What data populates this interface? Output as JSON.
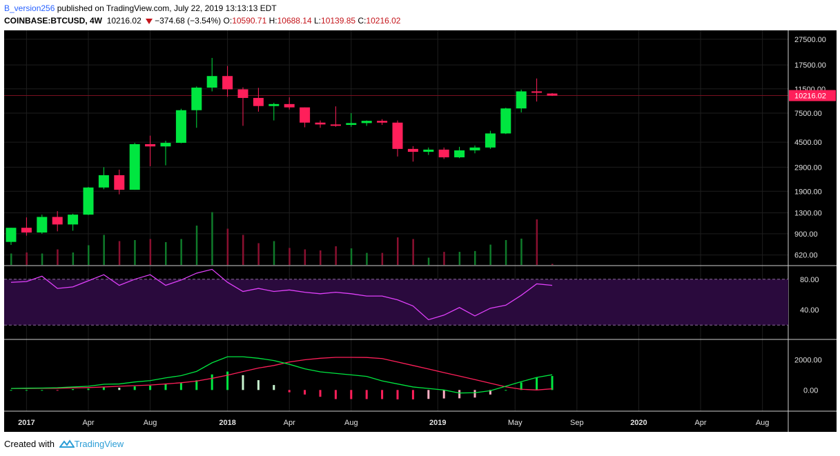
{
  "header": {
    "author": "B_version256",
    "published_text": " published on TradingView.com, July 22, 2019 13:13:13 EDT",
    "symbol": "COINBASE:BTCUSD, 4W",
    "last": "10216.02",
    "change": "−374.68 (−3.54%)",
    "o_label": "O:",
    "o_value": "10590.71",
    "h_label": "H:",
    "h_value": "10688.14",
    "l_label": "L:",
    "l_value": "10139.85",
    "c_label": "C:",
    "c_value": "10216.02"
  },
  "footer": {
    "created_with": "Created with",
    "brand": "TradingView"
  },
  "colors": {
    "up": "#00e640",
    "down": "#ff1f5a",
    "rsi": "#e040fb",
    "rsi_band": "#2a0a3d",
    "macd": "#00e640",
    "signal": "#ff1f5a",
    "grid": "#1e1e1e",
    "price_line": "#7a1020"
  },
  "chart_data": {
    "type": "candlestick",
    "price_axis": {
      "scale": "log",
      "ticks": [
        27500,
        17500,
        11500,
        7500,
        4500,
        2900,
        1900,
        1300,
        900,
        620
      ],
      "tick_labels": [
        "27500.00",
        "17500.00",
        "11500.00",
        "7500.00",
        "4500.00",
        "2900.00",
        "1900.00",
        "1300.00",
        "900.00",
        "620.00"
      ],
      "last_price_label": "10216.02",
      "last_price": 10216.02,
      "range": [
        540,
        31000
      ]
    },
    "time_axis": {
      "labels": [
        "2017",
        "Apr",
        "Aug",
        "2018",
        "Apr",
        "Aug",
        "2019",
        "May",
        "Sep",
        "2020",
        "Apr",
        "Aug"
      ],
      "bold": [
        "2017",
        "2018",
        "2019",
        "2020"
      ],
      "label_bar_index": [
        1,
        5,
        9,
        14,
        18,
        22,
        27.6,
        32.6,
        36.6,
        40.6,
        44.6,
        48.6
      ]
    },
    "candles": [
      {
        "o": 780,
        "h": 1000,
        "l": 740,
        "c": 1000
      },
      {
        "o": 1000,
        "h": 1200,
        "l": 870,
        "c": 920
      },
      {
        "o": 920,
        "h": 1260,
        "l": 900,
        "c": 1210
      },
      {
        "o": 1210,
        "h": 1340,
        "l": 940,
        "c": 1060
      },
      {
        "o": 1060,
        "h": 1280,
        "l": 950,
        "c": 1260
      },
      {
        "o": 1260,
        "h": 2050,
        "l": 1250,
        "c": 2030
      },
      {
        "o": 2030,
        "h": 2900,
        "l": 1970,
        "c": 2520
      },
      {
        "o": 2520,
        "h": 2780,
        "l": 1800,
        "c": 1950
      },
      {
        "o": 1950,
        "h": 4450,
        "l": 1950,
        "c": 4350
      },
      {
        "o": 4350,
        "h": 5050,
        "l": 2950,
        "c": 4180
      },
      {
        "o": 4180,
        "h": 4620,
        "l": 3000,
        "c": 4450
      },
      {
        "o": 4450,
        "h": 8100,
        "l": 4420,
        "c": 7900
      },
      {
        "o": 7900,
        "h": 12000,
        "l": 5800,
        "c": 11750
      },
      {
        "o": 11750,
        "h": 19800,
        "l": 11000,
        "c": 14400
      },
      {
        "o": 14400,
        "h": 17200,
        "l": 10000,
        "c": 11400
      },
      {
        "o": 11400,
        "h": 11800,
        "l": 6000,
        "c": 9800
      },
      {
        "o": 9800,
        "h": 11700,
        "l": 7700,
        "c": 8500
      },
      {
        "o": 8500,
        "h": 9000,
        "l": 6600,
        "c": 8800
      },
      {
        "o": 8800,
        "h": 9900,
        "l": 8000,
        "c": 8300
      },
      {
        "o": 8300,
        "h": 8300,
        "l": 5850,
        "c": 6350
      },
      {
        "o": 6350,
        "h": 6600,
        "l": 5800,
        "c": 6150
      },
      {
        "o": 6150,
        "h": 8450,
        "l": 5900,
        "c": 6100
      },
      {
        "o": 6100,
        "h": 7500,
        "l": 5900,
        "c": 6300
      },
      {
        "o": 6300,
        "h": 6600,
        "l": 6000,
        "c": 6550
      },
      {
        "o": 6550,
        "h": 6750,
        "l": 6100,
        "c": 6350
      },
      {
        "o": 6350,
        "h": 6600,
        "l": 3500,
        "c": 4000
      },
      {
        "o": 4000,
        "h": 4200,
        "l": 3200,
        "c": 3800
      },
      {
        "o": 3800,
        "h": 4100,
        "l": 3600,
        "c": 3950
      },
      {
        "o": 3950,
        "h": 4100,
        "l": 3350,
        "c": 3450
      },
      {
        "o": 3450,
        "h": 4150,
        "l": 3400,
        "c": 3900
      },
      {
        "o": 3900,
        "h": 4250,
        "l": 3700,
        "c": 4100
      },
      {
        "o": 4100,
        "h": 5500,
        "l": 4000,
        "c": 5250
      },
      {
        "o": 5250,
        "h": 8250,
        "l": 5200,
        "c": 8150
      },
      {
        "o": 8150,
        "h": 11350,
        "l": 7600,
        "c": 11000
      },
      {
        "o": 11000,
        "h": 13800,
        "l": 9200,
        "c": 10750
      },
      {
        "o": 10590.71,
        "h": 10688.14,
        "l": 10139.85,
        "c": 10216.02
      }
    ],
    "volume": [
      55,
      60,
      55,
      75,
      60,
      95,
      145,
      115,
      120,
      125,
      110,
      125,
      190,
      255,
      175,
      145,
      105,
      115,
      82,
      75,
      70,
      90,
      80,
      58,
      58,
      133,
      125,
      35,
      63,
      63,
      67,
      98,
      120,
      127,
      220,
      5
    ],
    "volume_max": 300,
    "rsi": {
      "ticks": [
        80,
        40
      ],
      "tick_labels": [
        "80.00",
        "40.00"
      ],
      "band": [
        80,
        20
      ],
      "range": [
        3,
        97
      ],
      "values": [
        76,
        77,
        84,
        68,
        70,
        78,
        86,
        72,
        80,
        86,
        72,
        79,
        88,
        93,
        76,
        64,
        68,
        64,
        66,
        63,
        61,
        63,
        61,
        58,
        58,
        53,
        45,
        27,
        33,
        43,
        32,
        42,
        46,
        59,
        74,
        72
      ]
    },
    "macd": {
      "ticks": [
        2000,
        0
      ],
      "tick_labels": [
        "2000.00",
        "0.00"
      ],
      "range": [
        -1400,
        3300
      ],
      "macd": [
        100,
        120,
        130,
        150,
        200,
        250,
        380,
        400,
        530,
        620,
        800,
        950,
        1230,
        1800,
        2200,
        2200,
        2100,
        1950,
        1700,
        1400,
        1200,
        1100,
        1000,
        900,
        600,
        400,
        200,
        100,
        0,
        -200,
        -180,
        -50,
        250,
        550,
        830,
        1010
      ],
      "signal": [
        100,
        100,
        110,
        110,
        140,
        160,
        200,
        250,
        290,
        330,
        400,
        480,
        590,
        770,
        980,
        1220,
        1450,
        1620,
        1850,
        2000,
        2100,
        2160,
        2160,
        2150,
        2080,
        1850,
        1620,
        1390,
        1150,
        920,
        690,
        450,
        210,
        50,
        0,
        80
      ],
      "hist": [
        0,
        0,
        0,
        -40,
        60,
        90,
        180,
        150,
        240,
        290,
        400,
        470,
        640,
        1030,
        1220,
        980,
        650,
        330,
        -150,
        -300,
        -450,
        -600,
        -600,
        -600,
        -600,
        -620,
        -620,
        -590,
        -560,
        -550,
        -500,
        -300,
        0,
        500,
        830,
        930
      ]
    }
  }
}
